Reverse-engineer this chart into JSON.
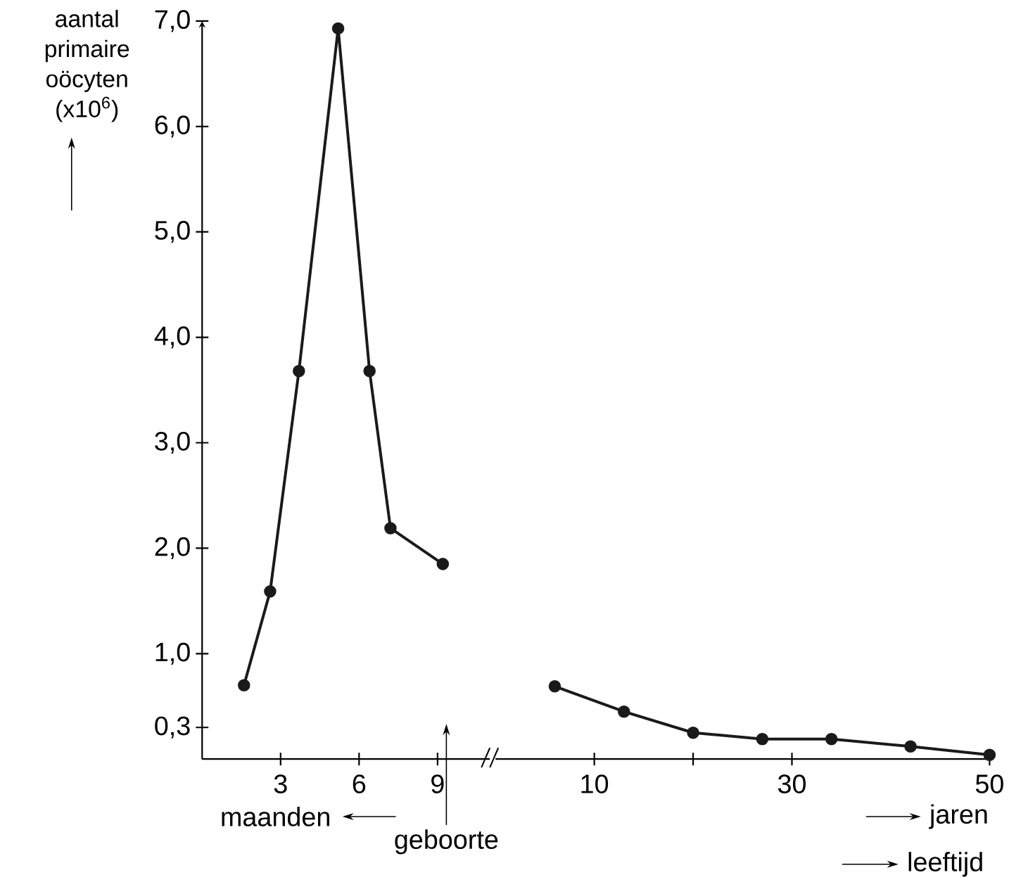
{
  "chart_data": [
    {
      "type": "line",
      "ylabel": "aantal primaire oöcyten (x10$^{6}$)",
      "xlabel": "maanden",
      "annotations": [
        "geboorte"
      ],
      "xlim": [
        0,
        11
      ],
      "xticks": [
        3,
        6,
        9
      ],
      "ylim": [
        0,
        7
      ],
      "yticks": [
        {
          "value": 0.3,
          "label": "0,3"
        },
        {
          "value": 1,
          "label": "1,0"
        },
        {
          "value": 2,
          "label": "2,0"
        },
        {
          "value": 3,
          "label": "3,0"
        },
        {
          "value": 4,
          "label": "4,0"
        },
        {
          "value": 5,
          "label": "5,0"
        },
        {
          "value": 6,
          "label": "6,0"
        },
        {
          "value": 7,
          "label": "7,0"
        }
      ],
      "marker": "circle",
      "series": [
        {
          "color": "#1a1a1a",
          "x": [
            1.6,
            2.6,
            3.7,
            5.2,
            6.4,
            7.2,
            9.2
          ],
          "values": [
            0.7,
            1.59,
            3.68,
            6.93,
            3.68,
            2.19,
            1.85
          ]
        }
      ]
    },
    {
      "type": "line",
      "xlabel": "jaren",
      "annotations": [
        "leeftijd"
      ],
      "xlim": [
        0,
        50
      ],
      "xticks": [
        10,
        {
          "value": 20,
          "label": null
        },
        30,
        50
      ],
      "ylim": [
        0,
        7
      ],
      "tick_labels": "x",
      "marker": "circle",
      "series": [
        {
          "color": "#1a1a1a",
          "x": [
            6,
            13,
            20,
            27,
            34,
            42,
            50
          ],
          "values": [
            0.69,
            0.45,
            0.25,
            0.19,
            0.19,
            0.12,
            0.04
          ]
        }
      ]
    }
  ]
}
